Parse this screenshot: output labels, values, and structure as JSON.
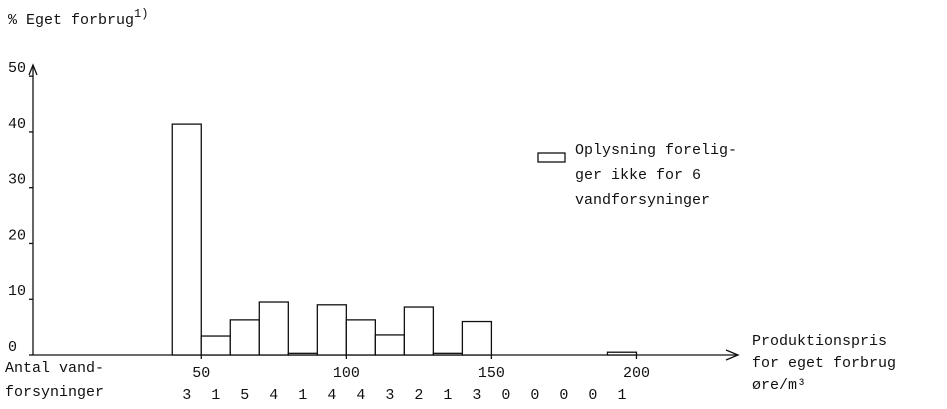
{
  "chart_data": {
    "type": "histogram",
    "title": "% Eget forbrug",
    "title_note": "1)",
    "x_label": [
      "Produktionspris",
      "for eget forbrug",
      "øre/m³"
    ],
    "count_label": [
      "Antal vand-",
      "forsyninger"
    ],
    "bins": [
      40,
      50,
      60,
      70,
      80,
      90,
      100,
      110,
      120,
      130,
      140,
      150,
      160,
      170,
      180,
      190,
      200
    ],
    "values": [
      41.4,
      3.4,
      6.3,
      9.5,
      0.3,
      9,
      6.3,
      3.6,
      8.6,
      0.3,
      6,
      0,
      0,
      0,
      0,
      0.5
    ],
    "counts": [
      3,
      1,
      5,
      4,
      1,
      4,
      4,
      3,
      2,
      1,
      3,
      0,
      0,
      0,
      0,
      1
    ],
    "legend": [
      "Oplysning forelig-",
      "ger ikke for 6",
      "vandforsyninger"
    ],
    "color": "#ffffff",
    "xlim": [
      -8,
      235
    ],
    "xticks": [
      50,
      100,
      150,
      200
    ],
    "ylim": [
      0,
      52
    ],
    "yticks": [
      0,
      10,
      20,
      30,
      40,
      50
    ],
    "grid": false
  }
}
